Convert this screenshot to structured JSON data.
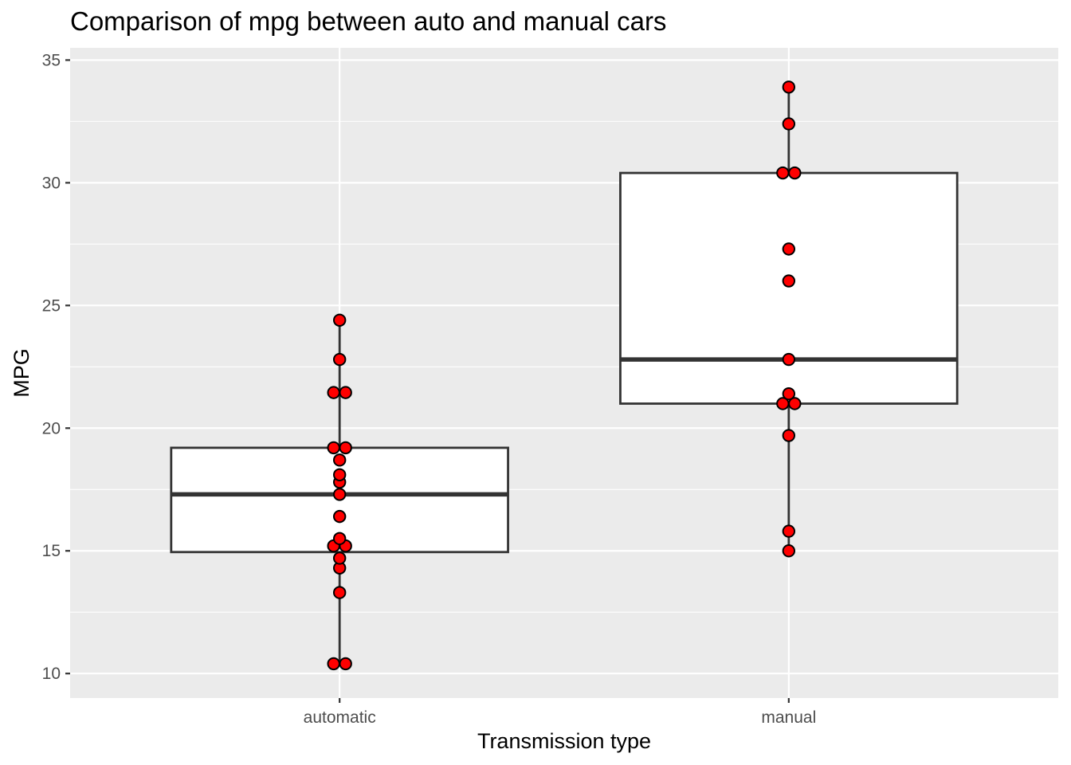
{
  "chart_data": {
    "type": "boxplot",
    "title": "Comparison of mpg between auto and manual cars",
    "xlabel": "Transmission type",
    "ylabel": "MPG",
    "ylim": [
      9.0,
      35.5
    ],
    "yticks": [
      10,
      15,
      20,
      25,
      30,
      35
    ],
    "grid": true,
    "point_color": "#ff0000",
    "panel_color": "#ebebeb",
    "categories": [
      "automatic",
      "manual"
    ],
    "groups": [
      {
        "category": "automatic",
        "min": 10.4,
        "q1": 14.95,
        "median": 17.3,
        "q3": 19.2,
        "max": 24.4,
        "points": [
          10.4,
          10.4,
          13.3,
          14.3,
          14.7,
          15.2,
          15.2,
          15.5,
          16.4,
          17.3,
          17.8,
          18.1,
          18.7,
          19.2,
          19.2,
          21.4,
          21.5,
          22.8,
          24.4
        ]
      },
      {
        "category": "manual",
        "min": 15.0,
        "q1": 21.0,
        "median": 22.8,
        "q3": 30.4,
        "max": 33.9,
        "points": [
          15.0,
          15.8,
          19.7,
          21.0,
          21.0,
          21.4,
          22.8,
          26.0,
          27.3,
          30.4,
          30.4,
          32.4,
          33.9
        ]
      }
    ]
  }
}
